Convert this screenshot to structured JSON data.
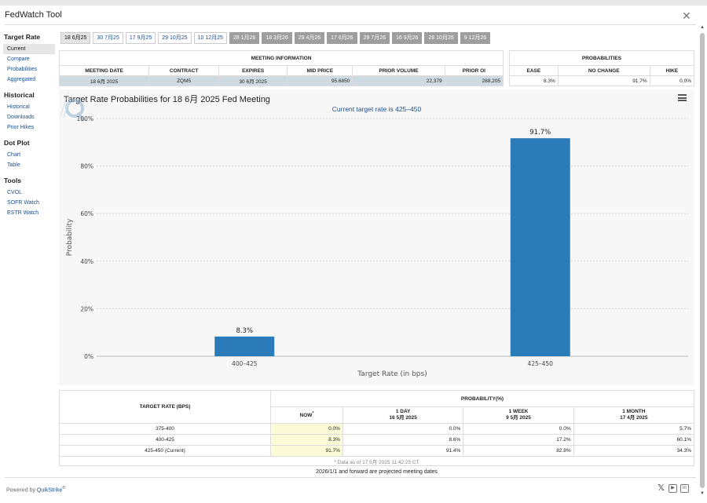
{
  "app": {
    "title": "FedWatch Tool",
    "close_icon": "close-x-icon"
  },
  "sidebar": {
    "sections": [
      {
        "title": "Target Rate",
        "items": [
          "Current",
          "Compare",
          "Probabilities",
          "Aggregated"
        ]
      },
      {
        "title": "Historical",
        "items": [
          "Historical",
          "Downloads",
          "Prior Hikes"
        ]
      },
      {
        "title": "Dot Plot",
        "items": [
          "Chart",
          "Table"
        ]
      },
      {
        "title": "Tools",
        "items": [
          "CVOL",
          "SOFR Watch",
          "ESTR Watch"
        ]
      }
    ]
  },
  "tabs": [
    {
      "label": "18 6月25",
      "state": "active"
    },
    {
      "label": "30 7月25",
      "state": "normal"
    },
    {
      "label": "17 9月25",
      "state": "normal"
    },
    {
      "label": "29 10月25",
      "state": "normal"
    },
    {
      "label": "10 12月25",
      "state": "normal"
    },
    {
      "label": "28 1月26",
      "state": "future"
    },
    {
      "label": "18 3月26",
      "state": "future"
    },
    {
      "label": "29 4月26",
      "state": "future"
    },
    {
      "label": "17 6月26",
      "state": "future"
    },
    {
      "label": "29 7月26",
      "state": "future"
    },
    {
      "label": "16 9月26",
      "state": "future"
    },
    {
      "label": "28 10月26",
      "state": "future"
    },
    {
      "label": "9 12月26",
      "state": "future"
    }
  ],
  "meeting_info": {
    "heading": "MEETING INFORMATION",
    "columns": [
      "MEETING DATE",
      "CONTRACT",
      "EXPIRES",
      "MID PRICE",
      "PRIOR VOLUME",
      "PRIOR OI"
    ],
    "values": [
      "18 6月 2025",
      "ZQM5",
      "30 6月 2025",
      "95.6850",
      "22,379",
      "288,205"
    ]
  },
  "probabilities": {
    "heading": "PROBABILITIES",
    "columns": [
      "EASE",
      "NO CHANGE",
      "HIKE"
    ],
    "values": [
      "8.3%",
      "91.7%",
      "0.0%"
    ]
  },
  "chart": {
    "title": "Target Rate Probabilities for 18 6月 2025 Fed Meeting",
    "subtitle": "Current target rate is 425–450",
    "menu_icon": "hamburger-menu-icon",
    "watermark_icon": "quikstrike-q-logo-icon"
  },
  "chart_data": {
    "type": "bar",
    "categories": [
      "400–425",
      "425–450"
    ],
    "values": [
      8.3,
      91.7
    ],
    "data_labels": [
      "8.3%",
      "91.7%"
    ],
    "xlabel": "Target Rate (in bps)",
    "ylabel": "Probability",
    "ylim": [
      0,
      100
    ],
    "yticks": [
      "0%",
      "20%",
      "40%",
      "60%",
      "80%",
      "100%"
    ],
    "grid": true,
    "bar_color": "#2b7bb9"
  },
  "bottom_table": {
    "col1_header": "TARGET RATE (BPS)",
    "group_header": "PROBABILITY(%)",
    "sub_headers": [
      {
        "line1": "NOW",
        "line2": ""
      },
      {
        "line1": "1 DAY",
        "line2": "16 5月 2025"
      },
      {
        "line1": "1 WEEK",
        "line2": "9 5月 2025"
      },
      {
        "line1": "1 MONTH",
        "line2": "17 4月 2025"
      }
    ],
    "now_marker": "*",
    "rows": [
      {
        "rate": "375-400",
        "values": [
          "0.0%",
          "0.0%",
          "0.0%",
          "5.7%"
        ]
      },
      {
        "rate": "400-425",
        "values": [
          "8.3%",
          "8.6%",
          "17.2%",
          "60.1%"
        ]
      },
      {
        "rate": "425-450 (Current)",
        "values": [
          "91.7%",
          "91.4%",
          "82.8%",
          "34.3%"
        ]
      }
    ],
    "note": "* Data as of 17 5月 2025 11:42:25 CT"
  },
  "footer": {
    "projected_note": "2026/1/1 and forward are projected meeting dates",
    "powered_prefix": "Powered by",
    "powered_brand": "QuikStrike",
    "registered_mark": "®",
    "social_icons": [
      "x-icon",
      "youtube-icon",
      "linkedin-icon"
    ]
  },
  "colors": {
    "accent": "#1b4f8f",
    "bar": "#2b7bb9",
    "highlight": "#fbfbd7",
    "meeting_row": "#cfdbe0",
    "future_tab": "#9e9e9e"
  }
}
